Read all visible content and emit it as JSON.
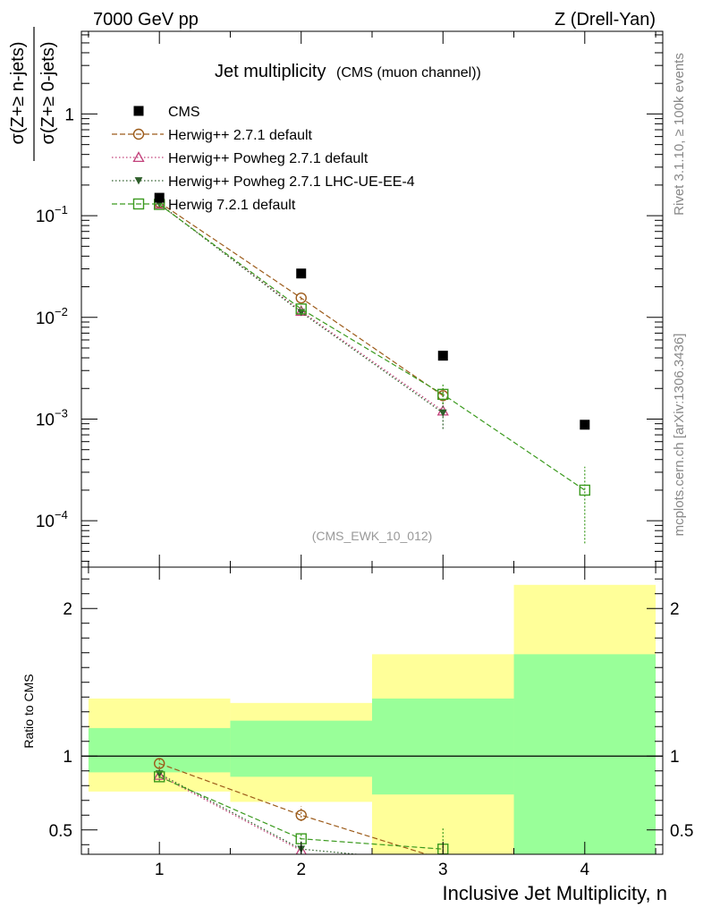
{
  "header": {
    "left": "7000 GeV pp",
    "right": "Z (Drell-Yan)"
  },
  "side_labels": {
    "rivet": "Rivet 3.1.10, ≥ 100k events",
    "mcplots": "mcplots.cern.ch [arXiv:1306.3436]"
  },
  "chart_data": [
    {
      "type": "scatter",
      "panel": "main",
      "title": "Jet multiplicity",
      "subtitle": "(CMS (muon channel))",
      "analysis_tag": "(CMS_EWK_10_012)",
      "ylabel_num": "σ(Z+≥ n-jets)",
      "ylabel_den": "σ(Z+≥ 0-jets)",
      "yscale": "log",
      "xlim": [
        0.45,
        4.55
      ],
      "ylim": [
        3.5e-05,
        6.5
      ],
      "y_ticks": [
        {
          "value": 1,
          "label": "1"
        },
        {
          "value": 0.1,
          "label": "10",
          "exp": "−1"
        },
        {
          "value": 0.01,
          "label": "10",
          "exp": "−2"
        },
        {
          "value": 0.001,
          "label": "10",
          "exp": "−3"
        },
        {
          "value": 0.0001,
          "label": "10",
          "exp": "−4"
        }
      ],
      "legend_position": "top-left",
      "series": [
        {
          "name": "CMS",
          "color": "#000000",
          "marker": "filled-square",
          "line": "none",
          "x": [
            1,
            2,
            3,
            4
          ],
          "y": [
            0.15,
            0.027,
            0.0042,
            0.00088
          ]
        },
        {
          "name": "Herwig++ 2.7.1 default",
          "color": "#9c5b1a",
          "marker": "open-circle",
          "line": "dashed",
          "x": [
            1,
            2,
            3
          ],
          "y": [
            0.135,
            0.0155,
            0.0017
          ],
          "err_lo": [
            0.131,
            0.0148,
            0.0014
          ],
          "err_hi": [
            0.139,
            0.0162,
            0.0021
          ]
        },
        {
          "name": "Herwig++ Powheg 2.7.1 default",
          "color": "#c2407a",
          "marker": "open-triangle",
          "line": "dotted",
          "x": [
            1,
            2,
            3
          ],
          "y": [
            0.13,
            0.0115,
            0.0012
          ]
        },
        {
          "name": "Herwig++ Powheg 2.7.1 LHC-UE-EE-4",
          "color": "#2e5e2a",
          "marker": "filled-triangle-down",
          "line": "dotted",
          "x": [
            1,
            2,
            3
          ],
          "y": [
            0.131,
            0.0112,
            0.00115
          ],
          "err_lo": [
            0.128,
            0.0105,
            0.0008
          ],
          "err_hi": [
            0.134,
            0.0119,
            0.0016
          ]
        },
        {
          "name": "Herwig 7.2.1 default",
          "color": "#3b9a1e",
          "marker": "open-square",
          "line": "dashed",
          "x": [
            1,
            2,
            3,
            4
          ],
          "y": [
            0.129,
            0.0121,
            0.00175,
            0.0002
          ],
          "err_lo": [
            0.125,
            0.0114,
            0.0014,
            6e-05
          ],
          "err_hi": [
            0.133,
            0.0128,
            0.0022,
            0.00034
          ]
        }
      ]
    },
    {
      "type": "scatter",
      "panel": "ratio",
      "ylabel": "Ratio to CMS",
      "xlabel": "Inclusive Jet Multiplicity, n",
      "ylim": [
        0.335,
        2.28
      ],
      "xlim": [
        0.45,
        4.55
      ],
      "x_ticks": [
        1,
        2,
        3,
        4
      ],
      "y_ticks": [
        0.5,
        1,
        2
      ],
      "reference_line": 1,
      "bands": [
        {
          "x0": 0.5,
          "x1": 1.5,
          "yellow": [
            0.76,
            1.39
          ],
          "green": [
            0.89,
            1.19
          ]
        },
        {
          "x0": 1.5,
          "x1": 2.5,
          "yellow": [
            0.69,
            1.36
          ],
          "green": [
            0.86,
            1.24
          ]
        },
        {
          "x0": 2.5,
          "x1": 3.5,
          "yellow": [
            0.3,
            1.69
          ],
          "green": [
            0.74,
            1.39
          ]
        },
        {
          "x0": 3.5,
          "x1": 4.5,
          "yellow": [
            0.3,
            2.16
          ],
          "green": [
            0.3,
            1.69
          ]
        }
      ],
      "band_colors": {
        "yellow": "#ffff99",
        "green": "#99ff99"
      },
      "series": [
        {
          "name": "Herwig++ 2.7.1 default",
          "color": "#9c5b1a",
          "marker": "open-circle",
          "line": "dashed",
          "x": [
            1,
            2,
            3
          ],
          "y": [
            0.95,
            0.6,
            0.3
          ],
          "err_lo": [
            0.92,
            0.56,
            0.26
          ],
          "err_hi": [
            0.98,
            0.66,
            0.4
          ]
        },
        {
          "name": "Herwig++ Powheg 2.7.1 default",
          "color": "#c2407a",
          "marker": "open-triangle",
          "line": "dotted",
          "x": [
            1,
            2
          ],
          "y": [
            0.87,
            0.36
          ]
        },
        {
          "name": "Herwig++ Powheg 2.7.1 LHC-UE-EE-4",
          "color": "#2e5e2a",
          "marker": "filled-triangle-down",
          "line": "dotted",
          "x": [
            1,
            2,
            3
          ],
          "y": [
            0.88,
            0.37,
            0.28
          ],
          "err_lo": [
            0.85,
            0.34,
            0.2
          ],
          "err_hi": [
            0.91,
            0.41,
            0.36
          ]
        },
        {
          "name": "Herwig 7.2.1 default",
          "color": "#3b9a1e",
          "marker": "open-square",
          "line": "dashed",
          "x": [
            1,
            2,
            3
          ],
          "y": [
            0.86,
            0.44,
            0.37
          ],
          "err_lo": [
            0.83,
            0.41,
            0.28
          ],
          "err_hi": [
            0.89,
            0.48,
            0.52
          ]
        }
      ]
    }
  ]
}
